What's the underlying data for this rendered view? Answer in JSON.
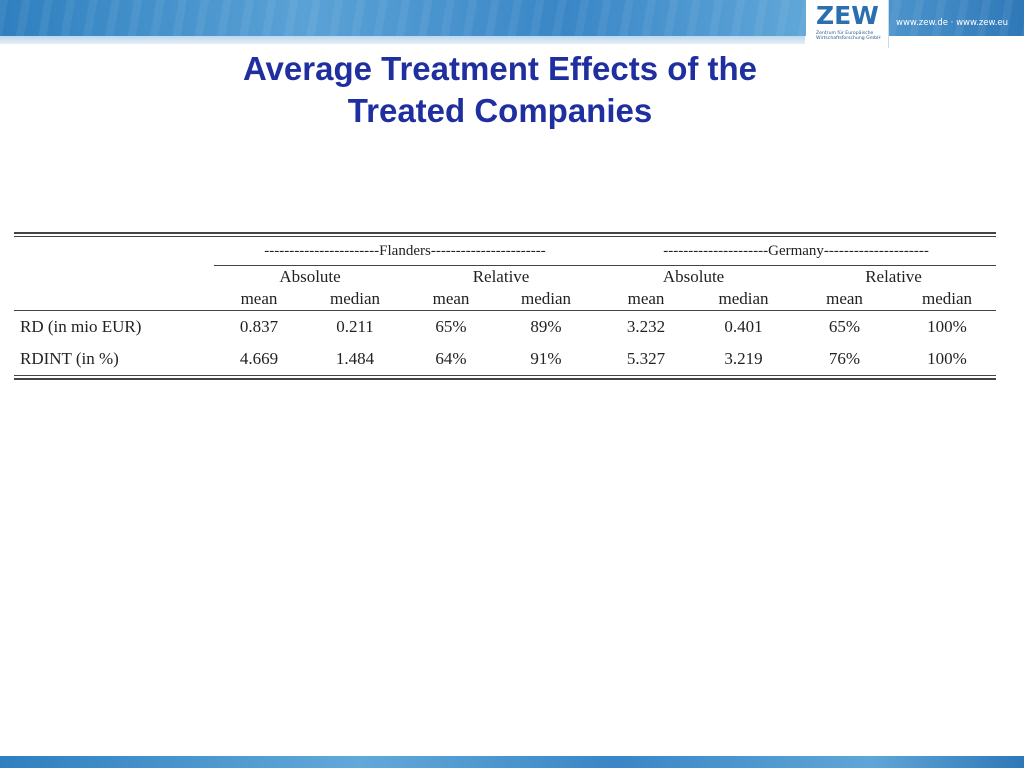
{
  "header": {
    "logo_text": "ZEW",
    "logo_subtitle": "Zentrum für Europäische Wirtschaftsforschung GmbH",
    "url": "www.zew.de · www.zew.eu",
    "brand_color": "#2a6fb0"
  },
  "slide": {
    "title_line1": "Average Treatment Effects of the",
    "title_line2": "Treated Companies",
    "title_color": "#1f2fa0"
  },
  "table": {
    "groups": [
      "-----------------------Flanders-----------------------",
      "---------------------Germany---------------------"
    ],
    "subgroups": [
      "Absolute",
      "Relative",
      "Absolute",
      "Relative"
    ],
    "columns": [
      "mean",
      "median",
      "mean",
      "median",
      "mean",
      "median",
      "mean",
      "median"
    ],
    "rows": [
      {
        "label": "RD (in mio EUR)",
        "cells": [
          "0.837",
          "0.211",
          "65%",
          "89%",
          "3.232",
          "0.401",
          "65%",
          "100%"
        ]
      },
      {
        "label": "RDINT (in %)",
        "cells": [
          "4.669",
          "1.484",
          "64%",
          "91%",
          "5.327",
          "3.219",
          "76%",
          "100%"
        ]
      }
    ]
  }
}
